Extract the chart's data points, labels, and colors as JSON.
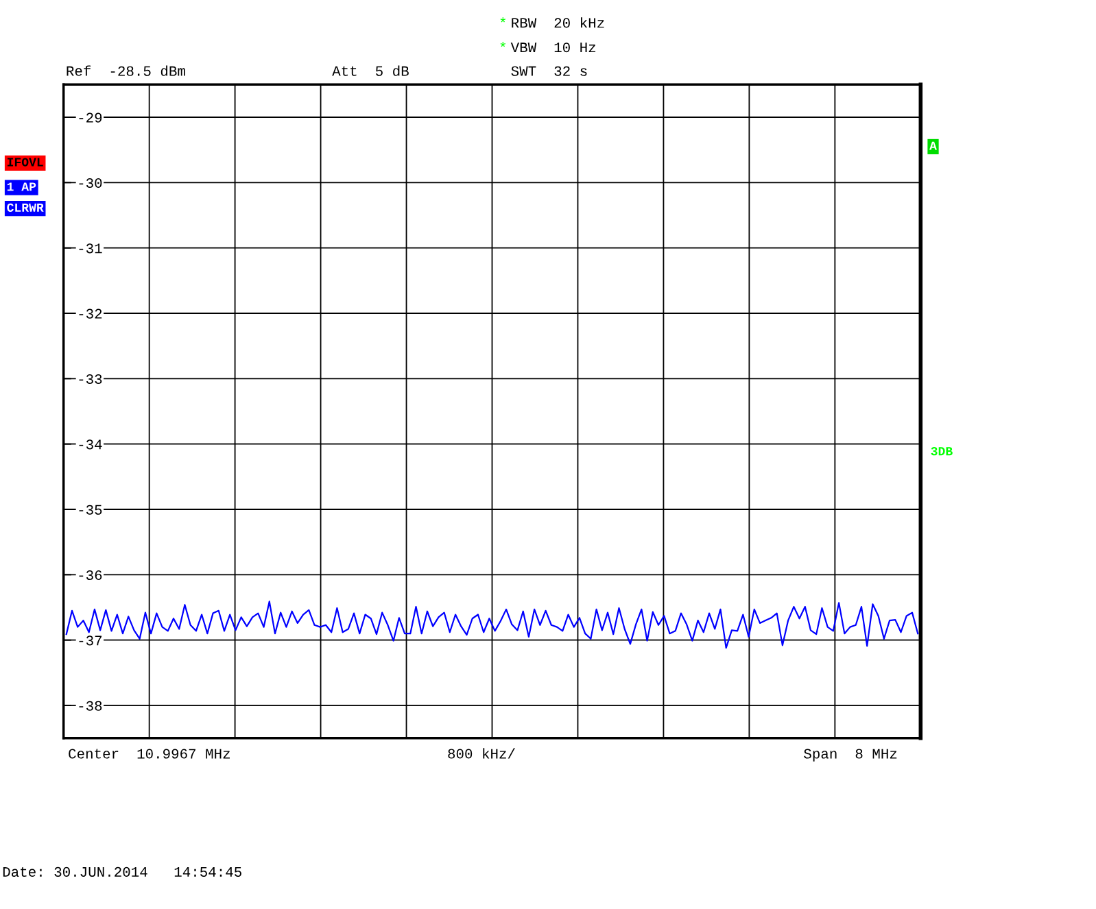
{
  "chart_data": {
    "type": "line",
    "annotations": [
      "*",
      "RBW  20 kHz",
      "*",
      "VBW  10 Hz",
      "SWT  32 s",
      "Ref  -28.5 dBm",
      "Att  5 dB",
      "IFOVL",
      "1 AP",
      "CLRWR",
      "A",
      "3DB",
      "Center  10.9967 MHz",
      "800 kHz/",
      "Span  8 MHz",
      "Date: 30.JUN.2014   14:54:45"
    ],
    "categories": [
      null,
      null,
      null,
      null,
      null,
      null,
      null,
      null,
      null,
      null,
      null,
      null,
      null,
      null,
      null,
      null,
      null,
      null,
      null,
      null,
      null,
      null,
      null,
      null,
      null,
      null,
      null,
      null,
      null,
      null,
      null,
      null,
      null,
      null,
      null,
      null,
      null,
      null,
      null,
      null,
      null,
      null,
      null,
      null,
      null,
      null,
      null,
      null,
      null,
      null,
      null,
      null,
      null,
      null,
      null,
      null,
      null,
      null,
      null,
      null,
      null,
      null,
      null,
      null,
      null,
      null,
      null,
      null,
      null,
      null,
      null,
      null,
      null,
      null,
      null,
      null,
      null,
      null,
      null,
      null,
      null,
      null,
      null,
      null,
      null,
      null,
      null,
      null,
      null,
      null,
      null,
      null,
      null,
      null,
      null,
      null,
      null,
      null,
      null,
      null,
      null,
      null,
      null,
      null,
      null,
      null,
      null,
      null,
      null,
      null,
      null,
      null,
      null,
      null,
      null,
      null,
      null,
      null,
      null,
      null,
      null,
      null,
      null,
      null,
      null,
      null,
      null,
      null,
      null,
      null,
      null,
      null,
      null,
      null,
      null,
      null,
      null,
      null,
      null,
      null,
      null,
      null,
      null,
      null,
      null,
      null,
      null,
      null,
      null,
      null,
      null,
      null
    ],
    "ylim": [
      -38.5,
      -28.5
    ],
    "yticks": [
      -38,
      -37,
      -36,
      -35,
      -34,
      -33,
      -32,
      -31,
      -30,
      -29
    ],
    "grid": true,
    "legend": false,
    "marker": "none",
    "line_style": "solid",
    "series": [
      {
        "color": "#0000ff",
        "values": [
          -36.91,
          -36.55,
          -36.8,
          -36.7,
          -36.88,
          -36.53,
          -36.85,
          -36.54,
          -36.86,
          -36.61,
          -36.9,
          -36.64,
          -36.85,
          -36.98,
          -36.58,
          -36.9,
          -36.59,
          -36.8,
          -36.86,
          -36.67,
          -36.83,
          -36.46,
          -36.77,
          -36.86,
          -36.61,
          -36.9,
          -36.59,
          -36.55,
          -36.86,
          -36.61,
          -36.85,
          -36.65,
          -36.79,
          -36.65,
          -36.59,
          -36.8,
          -36.41,
          -36.9,
          -36.58,
          -36.8,
          -36.56,
          -36.74,
          -36.61,
          -36.54,
          -36.77,
          -36.8,
          -36.77,
          -36.88,
          -36.51,
          -36.88,
          -36.83,
          -36.59,
          -36.9,
          -36.61,
          -36.67,
          -36.91,
          -36.58,
          -36.77,
          -37.01,
          -36.66,
          -36.9,
          -36.9,
          -36.49,
          -36.9,
          -36.56,
          -36.79,
          -36.65,
          -36.58,
          -36.88,
          -36.61,
          -36.79,
          -36.92,
          -36.67,
          -36.61,
          -36.88,
          -36.67,
          -36.86,
          -36.71,
          -36.53,
          -36.76,
          -36.85,
          -36.56,
          -36.95,
          -36.53,
          -36.77,
          -36.55,
          -36.77,
          -36.8,
          -36.86,
          -36.61,
          -36.8,
          -36.66,
          -36.9,
          -36.98,
          -36.53,
          -36.85,
          -36.58,
          -36.91,
          -36.51,
          -36.83,
          -37.06,
          -36.76,
          -36.53,
          -37.01,
          -36.57,
          -36.77,
          -36.63,
          -36.9,
          -36.86,
          -36.59,
          -36.76,
          -37.01,
          -36.7,
          -36.88,
          -36.59,
          -36.83,
          -36.53,
          -37.12,
          -36.85,
          -36.86,
          -36.61,
          -36.95,
          -36.53,
          -36.74,
          -36.7,
          -36.66,
          -36.59,
          -37.08,
          -36.7,
          -36.49,
          -36.67,
          -36.49,
          -36.85,
          -36.91,
          -36.51,
          -36.8,
          -36.86,
          -36.43,
          -36.9,
          -36.8,
          -36.77,
          -36.49,
          -37.09,
          -36.45,
          -36.63,
          -36.98,
          -36.7,
          -36.69,
          -36.88,
          -36.63,
          -36.58,
          -36.9
        ]
      }
    ]
  }
}
